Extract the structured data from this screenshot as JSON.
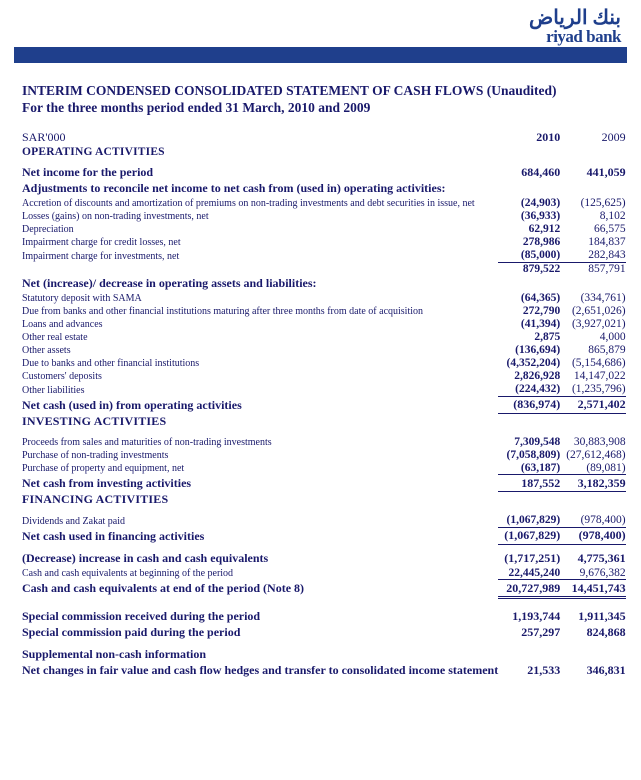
{
  "header": {
    "logo_arabic": "بنك الرياض",
    "logo_english": "riyad bank"
  },
  "doc": {
    "title": "INTERIM CONDENSED CONSOLIDATED STATEMENT OF CASH FLOWS (Unaudited)",
    "subtitle": "For the three months period ended 31 March, 2010 and 2009",
    "unit": "SAR'000",
    "op_activities": "OPERATING ACTIVITIES",
    "inv_activities": "INVESTING ACTIVITIES",
    "fin_activities": "FINANCING ACTIVITIES",
    "year1": "2010",
    "year2": "2009"
  },
  "rows": {
    "net_income": {
      "l": "Net income for the period",
      "v1": "684,460",
      "v2": "441,059"
    },
    "adjust": {
      "l": "Adjustments to reconcile net income to net cash from (used in) operating activities:"
    },
    "accretion": {
      "l": "Accretion of discounts and amortization of premiums on non-trading investments and debt securities in issue, net",
      "v1": "(24,903)",
      "v2": "(125,625)"
    },
    "losses_gains": {
      "l": "Losses (gains) on non-trading investments, net",
      "v1": "(36,933)",
      "v2": "8,102"
    },
    "depreciation": {
      "l": "Depreciation",
      "v1": "62,912",
      "v2": "66,575"
    },
    "imp_credit": {
      "l": "Impairment charge for credit losses, net",
      "v1": "278,986",
      "v2": "184,837"
    },
    "imp_inv": {
      "l": "Impairment charge for investments, net",
      "v1": "(85,000)",
      "v2": "282,843"
    },
    "subtotal1": {
      "v1": "879,522",
      "v2": "857,791"
    },
    "net_incr": {
      "l": "Net (increase)/ decrease in operating assets and liabilities:"
    },
    "statutory": {
      "l": "Statutory deposit with SAMA",
      "v1": "(64,365)",
      "v2": "(334,761)"
    },
    "due_from": {
      "l": "Due from banks and other financial institutions maturing after three months from date of acquisition",
      "v1": "272,790",
      "v2": "(2,651,026)"
    },
    "loans": {
      "l": "Loans and advances",
      "v1": "(41,394)",
      "v2": "(3,927,021)"
    },
    "other_re": {
      "l": "Other real estate",
      "v1": "2,875",
      "v2": "4,000"
    },
    "other_assets": {
      "l": "Other assets",
      "v1": "(136,694)",
      "v2": "865,879"
    },
    "due_to": {
      "l": "Due to banks and other financial institutions",
      "v1": "(4,352,204)",
      "v2": "(5,154,686)"
    },
    "cust_dep": {
      "l": "Customers' deposits",
      "v1": "2,826,928",
      "v2": "14,147,022"
    },
    "other_liab": {
      "l": "Other liabilities",
      "v1": "(224,432)",
      "v2": "(1,235,796)"
    },
    "netcash_op": {
      "l": "Net cash (used in) from operating activities",
      "v1": "(836,974)",
      "v2": "2,571,402"
    },
    "proceeds_inv": {
      "l": "Proceeds from sales and maturities of non-trading investments",
      "v1": "7,309,548",
      "v2": "30,883,908"
    },
    "purchase_inv": {
      "l": "Purchase of non-trading investments",
      "v1": "(7,058,809)",
      "v2": "(27,612,468)"
    },
    "purchase_pe": {
      "l": "Purchase of property and equipment, net",
      "v1": "(63,187)",
      "v2": "(89,081)"
    },
    "netcash_inv": {
      "l": "Net cash from investing activities",
      "v1": "187,552",
      "v2": "3,182,359"
    },
    "dividends": {
      "l": "Dividends and Zakat paid",
      "v1": "(1,067,829)",
      "v2": "(978,400)"
    },
    "netcash_fin": {
      "l": "Net cash used in financing activities",
      "v1": "(1,067,829)",
      "v2": "(978,400)"
    },
    "decrease": {
      "l": " (Decrease) increase in cash and cash equivalents",
      "v1": "(1,717,251)",
      "v2": "4,775,361"
    },
    "cash_begin": {
      "l": "Cash and cash equivalents at beginning of the period",
      "v1": "22,445,240",
      "v2": "9,676,382"
    },
    "cash_end": {
      "l": "Cash and cash equivalents at end of the period (Note 8)",
      "v1": "20,727,989",
      "v2": "14,451,743"
    },
    "sp_recv": {
      "l": "Special commission received during the period",
      "v1": "1,193,744",
      "v2": "1,911,345"
    },
    "sp_paid": {
      "l": "Special commission paid during the period",
      "v1": "257,297",
      "v2": "824,868"
    },
    "supp": {
      "l": "Supplemental non-cash information"
    },
    "fairvalue": {
      "l": "Net changes in fair value and cash flow hedges and transfer to consolidated income statement",
      "v1": "21,533",
      "v2": "346,831"
    }
  },
  "colors": {
    "text": "#19196b",
    "bar": "#1f3f8c",
    "bg": "#ffffff"
  }
}
